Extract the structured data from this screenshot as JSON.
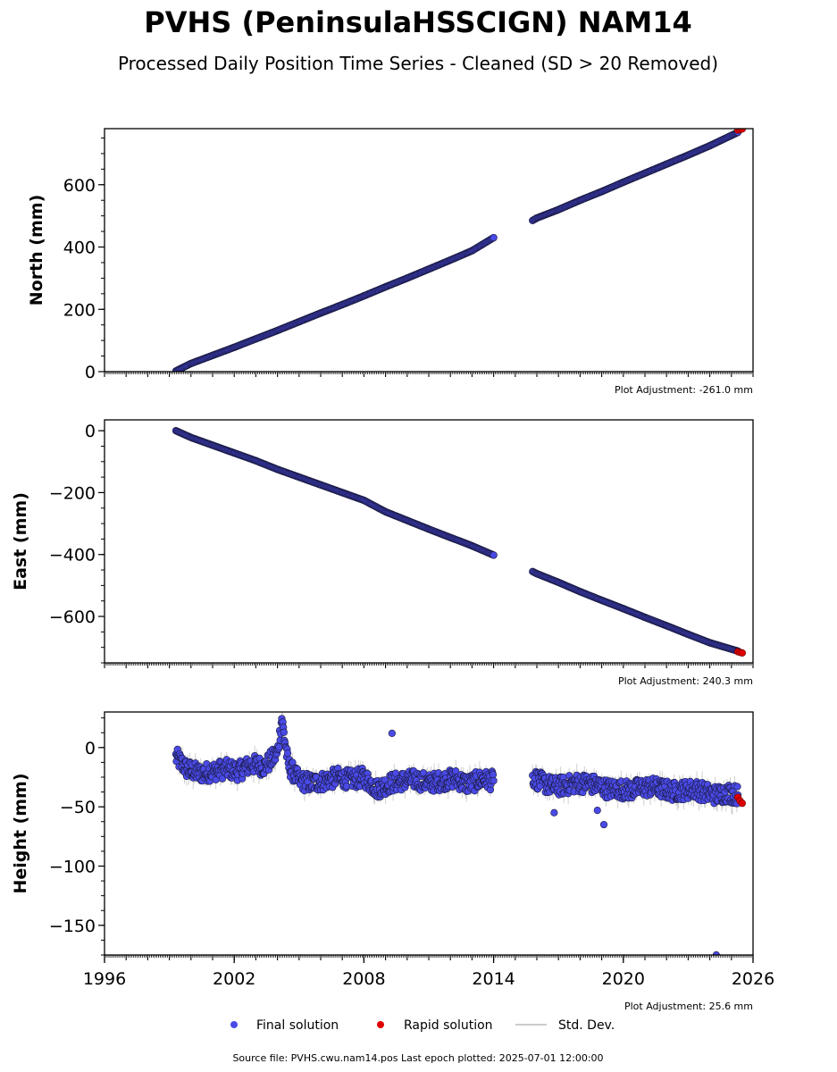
{
  "title": "PVHS (PeninsulaHSSCIGN) NAM14",
  "subtitle": "Processed Daily Position Time Series - Cleaned (SD > 20 Removed)",
  "footer": "Source file: PVHS.cwu.nam14.pos  Last epoch plotted: 2025-07-01 12:00:00",
  "colors": {
    "final": "#4a4ae6",
    "final_edge": "#1a1a40",
    "rapid": "#e00000",
    "stddev": "#bbbbbb"
  },
  "legend": [
    {
      "label": "Final solution",
      "marker": "dot-final"
    },
    {
      "label": "Rapid solution",
      "marker": "dot-rapid"
    },
    {
      "label": "Std. Dev.",
      "marker": "line-stddev"
    }
  ],
  "chart_data": [
    {
      "type": "scatter",
      "ylabel": "North (mm)",
      "adjustment": "Plot Adjustment: -261.0 mm",
      "xlim": [
        1996,
        2026
      ],
      "ylim": [
        0,
        780
      ],
      "yticks": [
        0,
        200,
        400,
        600
      ],
      "yticklabels": [
        "0",
        "200",
        "400",
        "600"
      ],
      "series": [
        {
          "kind": "final",
          "x": [
            1999.3,
            2000,
            2001,
            2002,
            2003,
            2004,
            2005,
            2006,
            2007,
            2008,
            2009,
            2010,
            2011,
            2012,
            2013,
            2014.0
          ],
          "values": [
            2,
            26,
            52,
            78,
            105,
            132,
            160,
            188,
            215,
            243,
            272,
            300,
            329,
            358,
            388,
            430
          ]
        },
        {
          "kind": "final",
          "x": [
            2015.8,
            2016,
            2017,
            2018,
            2019,
            2020,
            2021,
            2022,
            2023,
            2024,
            2025.3
          ],
          "values": [
            485,
            493,
            520,
            550,
            578,
            608,
            637,
            666,
            695,
            725,
            768
          ]
        },
        {
          "kind": "rapid",
          "x": [
            2025.3,
            2025.4,
            2025.5
          ],
          "values": [
            775,
            777,
            779
          ]
        }
      ]
    },
    {
      "type": "scatter",
      "ylabel": "East (mm)",
      "adjustment": "Plot Adjustment: 240.3 mm",
      "xlim": [
        1996,
        2026
      ],
      "ylim": [
        -750,
        35
      ],
      "yticks": [
        0,
        -200,
        -400,
        -600
      ],
      "yticklabels": [
        "0",
        "−200",
        "−400",
        "−600"
      ],
      "series": [
        {
          "kind": "final",
          "x": [
            1999.3,
            2000,
            2001,
            2002,
            2003,
            2004,
            2005,
            2006,
            2007,
            2008,
            2009,
            2010,
            2011,
            2012,
            2013,
            2014.0
          ],
          "values": [
            0,
            -22,
            -47,
            -72,
            -97,
            -125,
            -150,
            -175,
            -200,
            -225,
            -262,
            -290,
            -318,
            -345,
            -372,
            -402
          ]
        },
        {
          "kind": "final",
          "x": [
            2015.8,
            2016,
            2017,
            2018,
            2019,
            2020,
            2021,
            2022,
            2023,
            2024,
            2025.3
          ],
          "values": [
            -455,
            -462,
            -490,
            -520,
            -548,
            -575,
            -603,
            -630,
            -658,
            -685,
            -712
          ]
        },
        {
          "kind": "rapid",
          "x": [
            2025.3,
            2025.4,
            2025.5
          ],
          "values": [
            -714,
            -716,
            -718
          ]
        }
      ]
    },
    {
      "type": "scatter",
      "ylabel": "Height (mm)",
      "adjustment": "Plot Adjustment: 25.6 mm",
      "xlim": [
        1996,
        2026
      ],
      "ylim": [
        -175,
        30
      ],
      "yticks": [
        0,
        -50,
        -100,
        -150
      ],
      "yticklabels": [
        "0",
        "−50",
        "−100",
        "−150"
      ],
      "xticks": [
        1996,
        2002,
        2008,
        2014,
        2020,
        2026
      ],
      "xticklabels": [
        "1996",
        "2002",
        "2008",
        "2014",
        "2020",
        "2026"
      ],
      "series": [
        {
          "kind": "final",
          "x": [
            1999.3,
            1999.8,
            2000.4,
            2001.0,
            2001.6,
            2002.2,
            2002.8,
            2003.4,
            2004.0,
            2004.2,
            2004.5,
            2005.0,
            2005.6,
            2006.2,
            2006.8,
            2007.4,
            2008.0,
            2008.6,
            2009.2,
            2009.8,
            2010.4,
            2011.0,
            2011.6,
            2012.2,
            2012.8,
            2013.4,
            2014.0
          ],
          "values": [
            -8,
            -18,
            -22,
            -20,
            -18,
            -20,
            -14,
            -16,
            -5,
            25,
            -15,
            -28,
            -30,
            -28,
            -25,
            -27,
            -25,
            -35,
            -30,
            -28,
            -27,
            -30,
            -28,
            -26,
            -31,
            -27,
            -28
          ]
        },
        {
          "kind": "final",
          "x": [
            2015.8,
            2016.3,
            2016.8,
            2017.3,
            2017.8,
            2018.3,
            2018.8,
            2019.3,
            2019.8,
            2020.3,
            2020.8,
            2021.3,
            2021.8,
            2022.3,
            2022.8,
            2023.3,
            2023.8,
            2024.3,
            2024.8,
            2025.3
          ],
          "values": [
            -25,
            -30,
            -33,
            -32,
            -30,
            -30,
            -32,
            -35,
            -35,
            -36,
            -34,
            -33,
            -35,
            -37,
            -36,
            -35,
            -38,
            -40,
            -38,
            -40
          ]
        },
        {
          "kind": "final",
          "x": [
            2009.3,
            2016.8,
            2018.8,
            2019.1,
            2024.3
          ],
          "values": [
            12,
            -55,
            -53,
            -65,
            -175
          ]
        },
        {
          "kind": "rapid",
          "x": [
            2025.3,
            2025.4,
            2025.5
          ],
          "values": [
            -42,
            -45,
            -47
          ]
        }
      ]
    }
  ]
}
